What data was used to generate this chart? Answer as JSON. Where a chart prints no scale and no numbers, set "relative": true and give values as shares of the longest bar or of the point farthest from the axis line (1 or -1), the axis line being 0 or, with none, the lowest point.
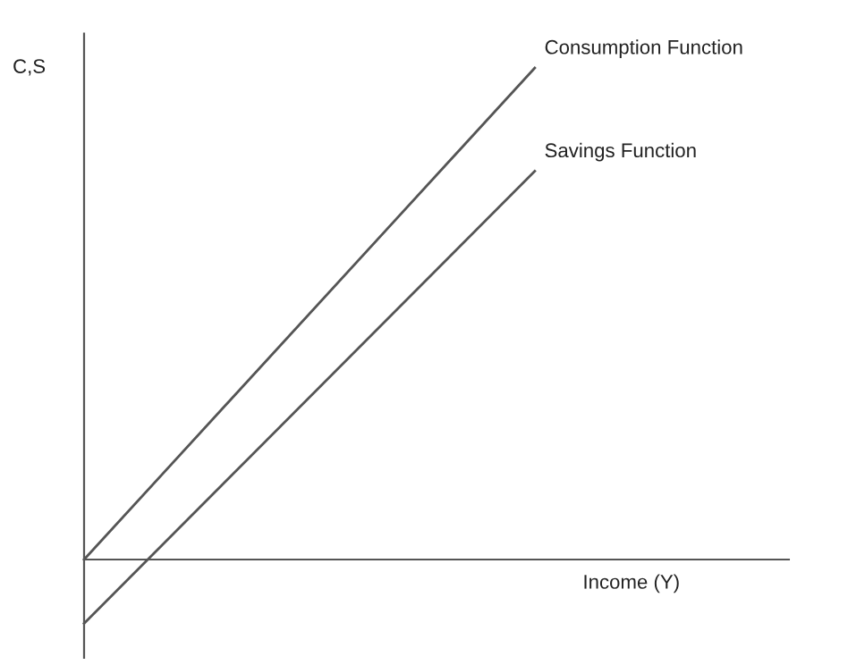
{
  "chart_data": {
    "type": "line",
    "relative": true,
    "ylabel": "C,S",
    "xlabel": "Income (Y)",
    "legend": false,
    "marker": "none",
    "line_style": "solid",
    "categories": [
      null,
      null
    ],
    "series": [
      {
        "name": "Consumption Function",
        "color": "#555555",
        "values": [
          0,
          1
        ]
      },
      {
        "name": "Savings Function",
        "color": "#555555",
        "values": [
          -0.13,
          0.79
        ]
      }
    ]
  }
}
